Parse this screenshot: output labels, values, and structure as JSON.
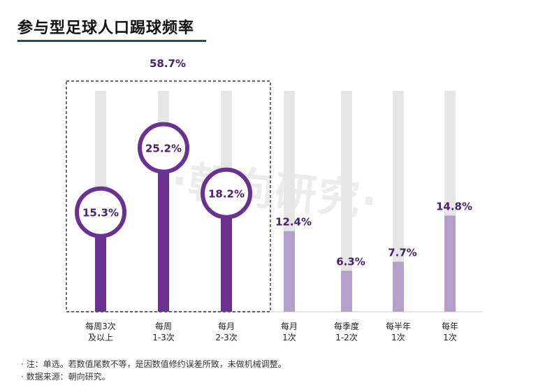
{
  "title": "参与型足球人口踢球频率",
  "group_label": "58.7%",
  "watermark": "·朝向研究·",
  "notes": [
    "· 注：单选。若数值尾数不等，是因数值修约误差所致，未做机械调整。",
    "· 数据来源：朝向研究。"
  ],
  "colors": {
    "dark": "#6b3191",
    "light": "#b5a0cb",
    "track": "#e6e6e6",
    "label": "#4a1f6e"
  },
  "chart_data": {
    "type": "bar",
    "categories": [
      [
        "每周3次",
        "及以上"
      ],
      [
        "每周",
        "1-3次"
      ],
      [
        "每月",
        "2-3次"
      ],
      [
        "每月",
        "1次"
      ],
      [
        "每季度",
        "1-2次"
      ],
      [
        "每半年",
        "1次"
      ],
      [
        "每年",
        "1次"
      ]
    ],
    "values": [
      15.3,
      25.2,
      18.2,
      12.4,
      6.3,
      7.7,
      14.8
    ],
    "labels": [
      "15.3%",
      "25.2%",
      "18.2%",
      "12.4%",
      "6.3%",
      "7.7%",
      "14.8%"
    ],
    "highlighted": [
      true,
      true,
      true,
      false,
      false,
      false,
      false
    ],
    "ylim": [
      0,
      40
    ]
  }
}
